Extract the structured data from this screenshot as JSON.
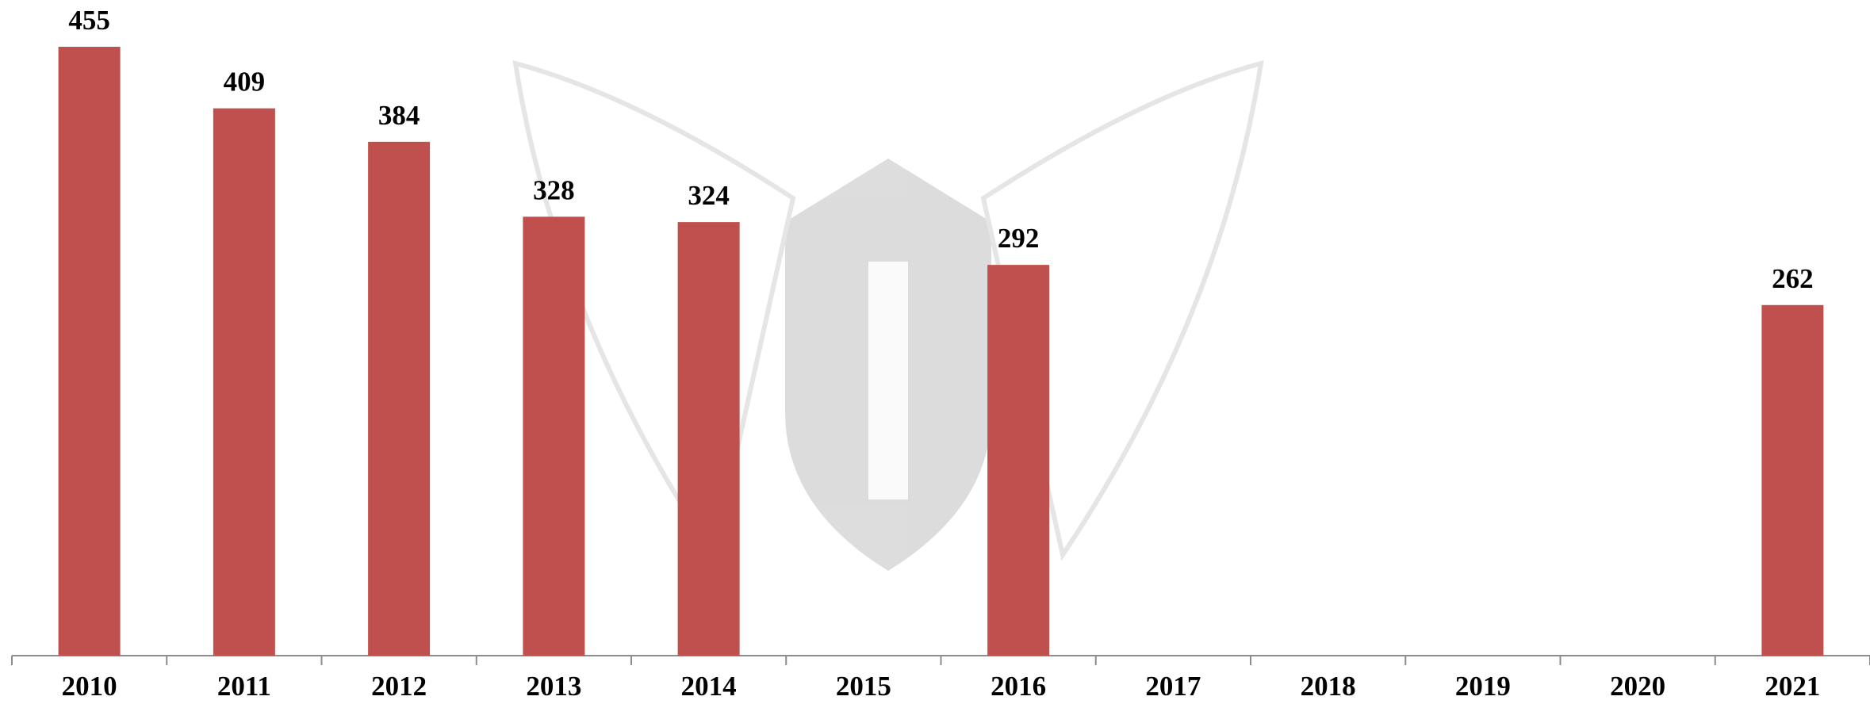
{
  "chart_data": {
    "type": "bar",
    "categories": [
      "2010",
      "2011",
      "2012",
      "2013",
      "2014",
      "2015",
      "2016",
      "2017",
      "2018",
      "2019",
      "2020",
      "2021"
    ],
    "values": [
      455,
      409,
      384,
      328,
      324,
      null,
      292,
      null,
      null,
      null,
      null,
      262
    ],
    "color": "#c0504d"
  }
}
